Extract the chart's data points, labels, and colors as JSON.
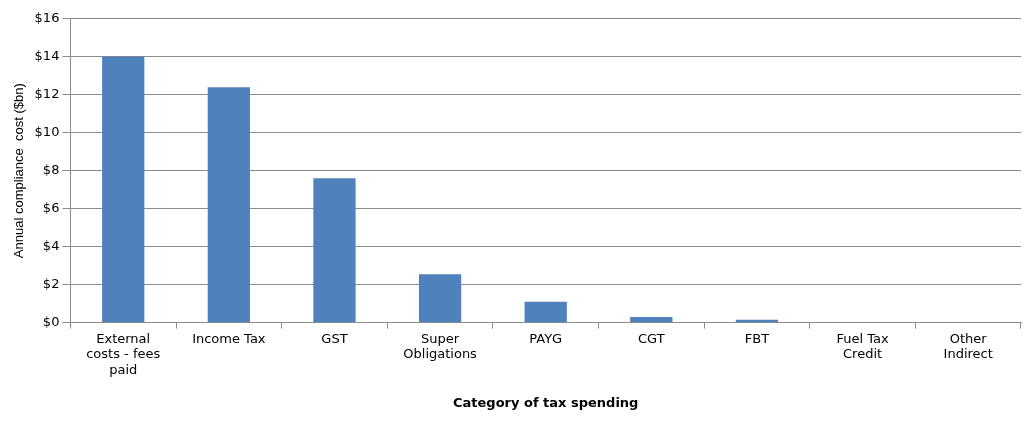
{
  "chart_data": {
    "type": "bar",
    "xlabel": "Category of tax spending",
    "ylabel": "Annual compliance  cost ($bn)",
    "categories": [
      "External costs - fees paid",
      "Income Tax",
      "GST",
      "Super Obligations",
      "PAYG",
      "CGT",
      "FBT",
      "Fuel Tax Credit",
      "Other Indirect"
    ],
    "values": [
      14.0,
      12.4,
      7.6,
      2.55,
      1.1,
      0.3,
      0.15,
      null,
      null
    ],
    "color": "#4f81bd",
    "ylim": [
      0,
      16
    ],
    "yticks": [
      {
        "value": 0,
        "label": "$0"
      },
      {
        "value": 2,
        "label": "$2"
      },
      {
        "value": 4,
        "label": "$4"
      },
      {
        "value": 6,
        "label": "$6"
      },
      {
        "value": 8,
        "label": "$8"
      },
      {
        "value": 10,
        "label": "$10"
      },
      {
        "value": 12,
        "label": "$12"
      },
      {
        "value": 14,
        "label": "$14"
      },
      {
        "value": 16,
        "label": "$16"
      }
    ],
    "grid": "y"
  }
}
